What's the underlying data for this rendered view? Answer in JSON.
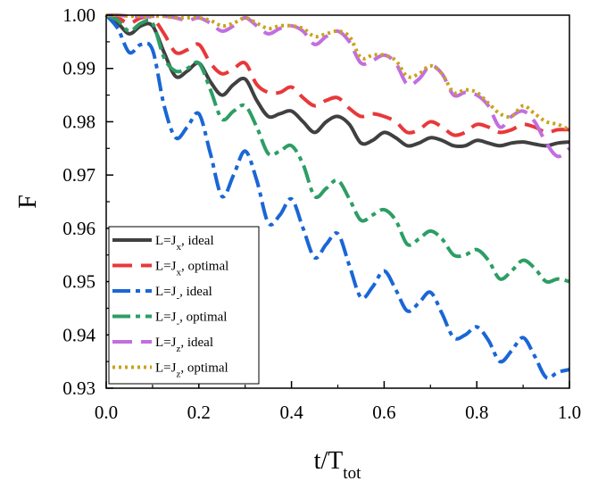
{
  "chart_data": {
    "type": "line",
    "xlabel": "t/T",
    "xlabel_sub": "tot",
    "ylabel": "F",
    "xlim": [
      0.0,
      1.0
    ],
    "ylim": [
      0.93,
      1.0
    ],
    "xticks": [
      "0.0",
      "0.2",
      "0.4",
      "0.6",
      "0.8",
      "1.0"
    ],
    "yticks": [
      "0.93",
      "0.94",
      "0.95",
      "0.96",
      "0.97",
      "0.98",
      "0.99",
      "1.00"
    ],
    "grid": false,
    "legend_position": "lower-left",
    "x": [
      0.0,
      0.025,
      0.05,
      0.075,
      0.1,
      0.125,
      0.15,
      0.175,
      0.2,
      0.225,
      0.25,
      0.275,
      0.3,
      0.325,
      0.35,
      0.375,
      0.4,
      0.425,
      0.45,
      0.475,
      0.5,
      0.525,
      0.55,
      0.575,
      0.6,
      0.625,
      0.65,
      0.675,
      0.7,
      0.725,
      0.75,
      0.775,
      0.8,
      0.825,
      0.85,
      0.875,
      0.9,
      0.925,
      0.95,
      0.975,
      1.0
    ],
    "series": [
      {
        "name_prefix": "L=J",
        "name_sub": "x",
        "name_suffix": ", ideal",
        "color": "#404040",
        "style": "solid",
        "values": [
          1.0,
          0.9985,
          0.9965,
          0.998,
          0.998,
          0.993,
          0.9885,
          0.9895,
          0.991,
          0.9875,
          0.985,
          0.987,
          0.988,
          0.984,
          0.981,
          0.9815,
          0.982,
          0.98,
          0.978,
          0.98,
          0.981,
          0.9795,
          0.976,
          0.9765,
          0.978,
          0.977,
          0.9755,
          0.976,
          0.977,
          0.9765,
          0.9755,
          0.9755,
          0.9765,
          0.976,
          0.9755,
          0.976,
          0.9762,
          0.9758,
          0.9755,
          0.976,
          0.9762
        ]
      },
      {
        "name_prefix": "L=J",
        "name_sub": "x",
        "name_suffix": ", optimal",
        "color": "#e8383b",
        "style": "dashed",
        "values": [
          1.0,
          0.9995,
          0.9985,
          0.9995,
          0.9995,
          0.9965,
          0.993,
          0.9935,
          0.9945,
          0.991,
          0.989,
          0.99,
          0.991,
          0.987,
          0.9855,
          0.9855,
          0.9865,
          0.9845,
          0.983,
          0.984,
          0.9845,
          0.9825,
          0.981,
          0.9815,
          0.981,
          0.98,
          0.978,
          0.9785,
          0.98,
          0.979,
          0.9775,
          0.978,
          0.9795,
          0.979,
          0.978,
          0.9785,
          0.9795,
          0.979,
          0.978,
          0.9785,
          0.9785
        ]
      },
      {
        "name_prefix": "L=J",
        "name_sub": "-",
        "name_suffix": ", ideal",
        "color": "#1a66d6",
        "style": "dashdot",
        "values": [
          1.0,
          0.9975,
          0.993,
          0.9945,
          0.9935,
          0.983,
          0.977,
          0.979,
          0.9815,
          0.974,
          0.966,
          0.97,
          0.9745,
          0.969,
          0.961,
          0.9625,
          0.9655,
          0.96,
          0.9545,
          0.957,
          0.959,
          0.953,
          0.947,
          0.949,
          0.952,
          0.9485,
          0.9445,
          0.946,
          0.948,
          0.944,
          0.9395,
          0.94,
          0.9415,
          0.939,
          0.935,
          0.937,
          0.9395,
          0.936,
          0.932,
          0.933,
          0.9335
        ]
      },
      {
        "name_prefix": "L=J",
        "name_sub": "-",
        "name_suffix": ", optimal",
        "color": "#2c9e64",
        "style": "dashdot",
        "values": [
          1.0,
          0.999,
          0.997,
          0.9985,
          0.9985,
          0.992,
          0.9895,
          0.99,
          0.991,
          0.986,
          0.9805,
          0.982,
          0.983,
          0.979,
          0.974,
          0.9745,
          0.9755,
          0.972,
          0.966,
          0.9675,
          0.969,
          0.9655,
          0.9615,
          0.9625,
          0.9635,
          0.9615,
          0.957,
          0.958,
          0.9595,
          0.958,
          0.955,
          0.955,
          0.956,
          0.954,
          0.9505,
          0.952,
          0.954,
          0.9525,
          0.95,
          0.9505,
          0.95
        ]
      },
      {
        "name_prefix": "L=J",
        "name_sub": "z",
        "name_suffix": ", ideal",
        "color": "#c26ee0",
        "style": "dashed",
        "values": [
          1.0,
          1.0,
          0.9998,
          0.9998,
          0.9998,
          0.9998,
          0.9995,
          0.999,
          0.9995,
          0.9985,
          0.997,
          0.998,
          0.9995,
          0.998,
          0.9965,
          0.9975,
          0.998,
          0.997,
          0.9945,
          0.996,
          0.997,
          0.995,
          0.991,
          0.9915,
          0.9925,
          0.991,
          0.987,
          0.988,
          0.9905,
          0.989,
          0.985,
          0.9855,
          0.985,
          0.983,
          0.979,
          0.981,
          0.982,
          0.98,
          0.976,
          0.9735,
          0.975
        ]
      },
      {
        "name_prefix": "L=J",
        "name_sub": "z",
        "name_suffix": ", optimal",
        "color": "#c9a21d",
        "style": "dotted",
        "values": [
          1.0,
          1.0,
          0.9998,
          0.9998,
          0.9998,
          0.9998,
          0.9995,
          0.9995,
          0.9995,
          0.999,
          0.998,
          0.9985,
          0.9995,
          0.9985,
          0.9975,
          0.998,
          0.998,
          0.9975,
          0.996,
          0.9965,
          0.997,
          0.996,
          0.992,
          0.9925,
          0.9925,
          0.9915,
          0.9885,
          0.989,
          0.9905,
          0.989,
          0.9855,
          0.986,
          0.9855,
          0.9835,
          0.9815,
          0.981,
          0.983,
          0.9815,
          0.98,
          0.9795,
          0.9785
        ]
      }
    ]
  }
}
